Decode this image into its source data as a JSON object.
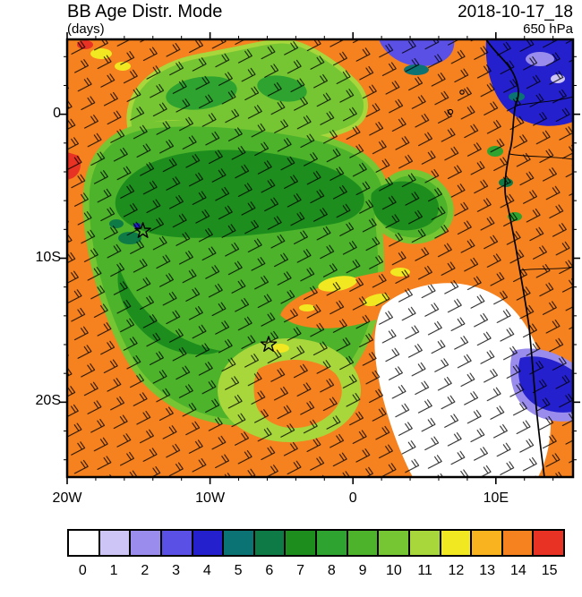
{
  "header": {
    "title": "BB Age Distr. Mode",
    "timestamp": "2018-10-17_18",
    "units_label": "(days)",
    "level_label": "650 hPa"
  },
  "colorbar": {
    "labels": [
      "0",
      "1",
      "2",
      "3",
      "4",
      "5",
      "6",
      "7",
      "8",
      "9",
      "10",
      "11",
      "12",
      "13",
      "14",
      "15"
    ],
    "colors": [
      "#FFFFFF",
      "#CDC5F5",
      "#998CEC",
      "#5B50E6",
      "#2420CE",
      "#0B7373",
      "#0E7B47",
      "#1D8E1D",
      "#2FA32F",
      "#4CB32B",
      "#76C633",
      "#A8D73C",
      "#F2E822",
      "#F8B31E",
      "#F5811F",
      "#E83223"
    ]
  },
  "chart_data": {
    "type": "heatmap",
    "title": "BB Age Distr. Mode",
    "units": "days",
    "valid_time": "2018-10-17_18",
    "pressure_level_hPa": 650,
    "projection": "lat-lon map, tropical South Atlantic and West/Central Africa",
    "lon_range": [
      -20,
      15.4
    ],
    "lat_range": [
      -25.2,
      5.2
    ],
    "x_ticks": [
      {
        "value": -20,
        "label": "20W"
      },
      {
        "value": -10,
        "label": "10W"
      },
      {
        "value": 0,
        "label": "0"
      },
      {
        "value": 10,
        "label": "10E"
      }
    ],
    "y_ticks": [
      {
        "value": 0,
        "label": "0"
      },
      {
        "value": -10,
        "label": "10S"
      },
      {
        "value": -20,
        "label": "20S"
      }
    ],
    "scale": {
      "min": 0,
      "max": 15,
      "units": "days"
    },
    "markers": [
      {
        "type": "star",
        "lon": -14.7,
        "lat": -8.1
      },
      {
        "type": "star",
        "lon": -5.9,
        "lat": -16.0
      }
    ],
    "wind_overlay": "650 hPa wind barbs over whole domain",
    "regions": [
      {
        "area": "background over most of domain",
        "age_days": 14
      },
      {
        "area": "northern plume band ~2N-0",
        "age_days": "10-11"
      },
      {
        "area": "main smoke plume spiral, center-west of domain",
        "age_days": "8-10"
      },
      {
        "area": "dark plume core arcs ~5S-9S",
        "age_days": 7
      },
      {
        "area": "small aged teal patches near west star",
        "age_days": 6
      },
      {
        "area": "light-green spiral ring ~17S-21S",
        "age_days": 11
      },
      {
        "area": "yellow patches inside plume ~11S-13S",
        "age_days": 12
      },
      {
        "area": "red speck at west edge ~7S",
        "age_days": 15
      },
      {
        "area": "white sector off Angola/Namibia coast (bottom right)",
        "age_days": 0
      },
      {
        "area": "blue strip at top near 5E",
        "age_days": 3
      },
      {
        "area": "northeast corner over central Africa",
        "age_days": "1-4"
      },
      {
        "area": "coastal blue patch near 16S",
        "age_days": "2-4"
      }
    ]
  }
}
